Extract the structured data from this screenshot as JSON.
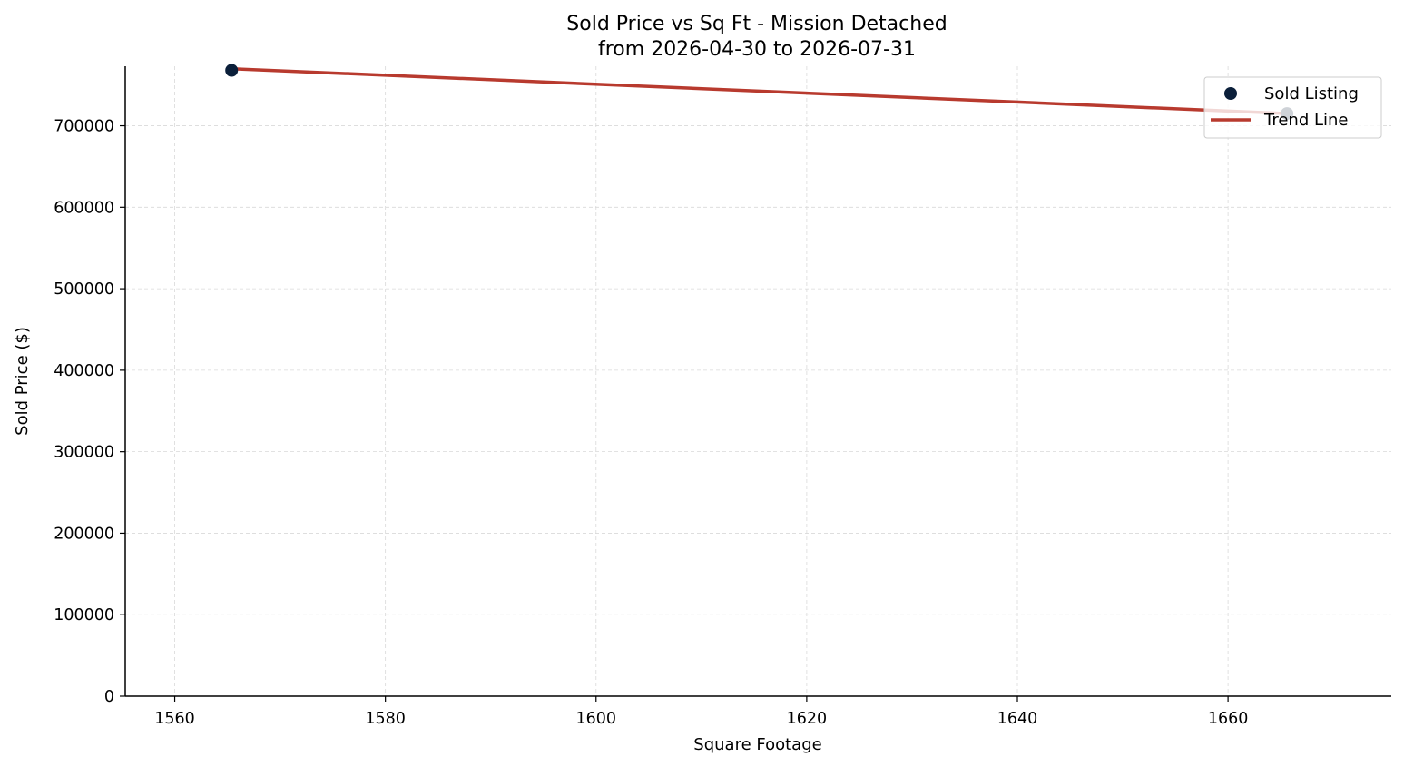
{
  "chart_data": {
    "type": "scatter",
    "title": "Sold Price vs Sq Ft - Mission Detached",
    "subtitle": "from 2026-04-30 to 2026-07-31",
    "xlabel": "Square Footage",
    "ylabel": "Sold Price ($)",
    "xlim": [
      1555.3,
      1675.5
    ],
    "ylim": [
      0,
      773000
    ],
    "x_ticks": [
      1560,
      1580,
      1600,
      1620,
      1640,
      1660
    ],
    "y_ticks": [
      0,
      100000,
      200000,
      300000,
      400000,
      500000,
      600000,
      700000
    ],
    "grid": true,
    "legend_position": "upper-right",
    "series": [
      {
        "name": "Sold Listing",
        "kind": "scatter",
        "color": "#0b1f3a",
        "points": [
          {
            "x": 1565.4,
            "y": 768000
          },
          {
            "x": 1665.6,
            "y": 715000
          }
        ]
      },
      {
        "name": "Trend Line",
        "kind": "line",
        "color": "#b83a2e",
        "points": [
          {
            "x": 1565.4,
            "y": 770000
          },
          {
            "x": 1665.6,
            "y": 715000
          }
        ]
      }
    ]
  }
}
